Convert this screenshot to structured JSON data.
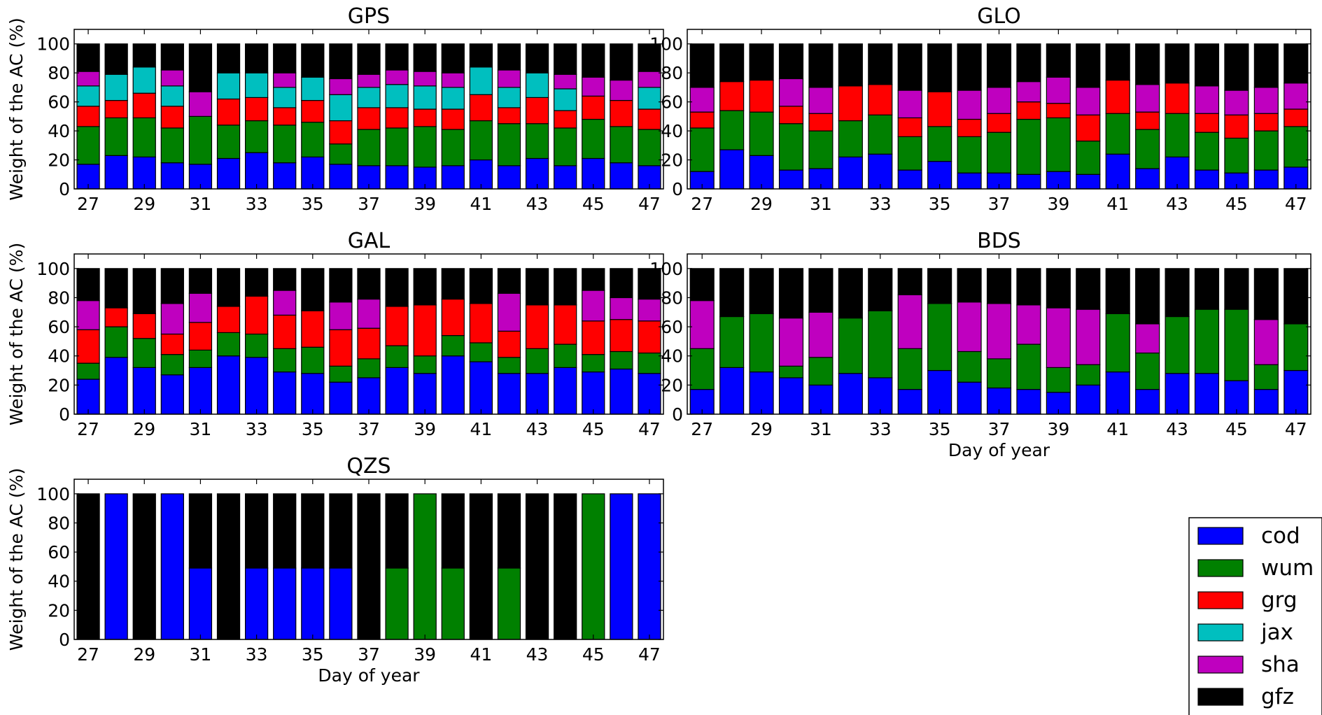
{
  "colors": {
    "cod": "#0000ff",
    "wum": "#008000",
    "grg": "#ff0000",
    "jax": "#00bfbf",
    "sha": "#bf00bf",
    "gfz": "#000000"
  },
  "legend": [
    {
      "key": "cod",
      "label": "cod"
    },
    {
      "key": "wum",
      "label": "wum"
    },
    {
      "key": "grg",
      "label": "grg"
    },
    {
      "key": "jax",
      "label": "jax"
    },
    {
      "key": "sha",
      "label": "sha"
    },
    {
      "key": "gfz",
      "label": "gfz"
    }
  ],
  "chart_data": [
    {
      "type": "bar",
      "stacked": true,
      "title": "GPS",
      "xlabel": "",
      "ylabel": "Weight of the AC (%)",
      "ylim": [
        0,
        110
      ],
      "yticks": [
        0,
        20,
        40,
        60,
        80,
        100
      ],
      "x": [
        27,
        28,
        29,
        30,
        31,
        32,
        33,
        34,
        35,
        36,
        37,
        38,
        39,
        40,
        41,
        42,
        43,
        44,
        45,
        46,
        47
      ],
      "xtick_labels": [
        "27",
        "29",
        "31",
        "33",
        "35",
        "37",
        "39",
        "41",
        "43",
        "45",
        "47"
      ],
      "series": [
        {
          "name": "cod",
          "values": [
            17,
            23,
            22,
            18,
            17,
            21,
            25,
            18,
            22,
            17,
            16,
            16,
            15,
            16,
            20,
            16,
            21,
            16,
            21,
            18,
            16
          ]
        },
        {
          "name": "wum",
          "values": [
            26,
            26,
            27,
            24,
            33,
            23,
            22,
            26,
            24,
            14,
            25,
            26,
            28,
            25,
            27,
            29,
            24,
            26,
            27,
            25,
            25
          ]
        },
        {
          "name": "grg",
          "values": [
            14,
            12,
            17,
            15,
            0,
            18,
            16,
            12,
            15,
            16,
            15,
            14,
            12,
            14,
            18,
            11,
            18,
            12,
            16,
            18,
            14
          ]
        },
        {
          "name": "jax",
          "values": [
            14,
            18,
            18,
            14,
            0,
            18,
            17,
            14,
            16,
            18,
            14,
            16,
            16,
            15,
            19,
            14,
            17,
            15,
            0,
            0,
            15
          ]
        },
        {
          "name": "sha",
          "values": [
            10,
            0,
            0,
            11,
            17,
            0,
            0,
            10,
            0,
            11,
            9,
            10,
            10,
            10,
            0,
            12,
            0,
            10,
            13,
            14,
            11
          ]
        },
        {
          "name": "gfz",
          "values": [
            19,
            21,
            16,
            18,
            33,
            20,
            20,
            20,
            23,
            24,
            21,
            18,
            19,
            20,
            16,
            18,
            20,
            21,
            23,
            25,
            19
          ]
        }
      ]
    },
    {
      "type": "bar",
      "stacked": true,
      "title": "GLO",
      "xlabel": "",
      "ylabel": "",
      "ylim": [
        0,
        110
      ],
      "yticks": [
        0,
        20,
        40,
        60,
        80,
        100
      ],
      "x": [
        27,
        28,
        29,
        30,
        31,
        32,
        33,
        34,
        35,
        36,
        37,
        38,
        39,
        40,
        41,
        42,
        43,
        44,
        45,
        46,
        47
      ],
      "xtick_labels": [
        "27",
        "29",
        "31",
        "33",
        "35",
        "37",
        "39",
        "41",
        "43",
        "45",
        "47"
      ],
      "series": [
        {
          "name": "cod",
          "values": [
            12,
            27,
            23,
            13,
            14,
            22,
            24,
            13,
            19,
            11,
            11,
            10,
            12,
            10,
            24,
            14,
            22,
            13,
            11,
            13,
            15
          ]
        },
        {
          "name": "wum",
          "values": [
            30,
            27,
            30,
            32,
            26,
            25,
            27,
            23,
            24,
            25,
            28,
            38,
            37,
            23,
            28,
            27,
            30,
            26,
            24,
            27,
            28
          ]
        },
        {
          "name": "grg",
          "values": [
            11,
            20,
            22,
            12,
            12,
            24,
            21,
            13,
            24,
            12,
            13,
            12,
            10,
            18,
            23,
            12,
            21,
            13,
            16,
            12,
            12
          ]
        },
        {
          "name": "jax",
          "values": [
            0,
            0,
            0,
            0,
            0,
            0,
            0,
            0,
            0,
            0,
            0,
            0,
            0,
            0,
            0,
            0,
            0,
            0,
            0,
            0,
            0
          ]
        },
        {
          "name": "sha",
          "values": [
            17,
            0,
            0,
            19,
            18,
            0,
            0,
            19,
            0,
            20,
            18,
            14,
            18,
            19,
            0,
            19,
            0,
            19,
            17,
            18,
            18
          ]
        },
        {
          "name": "gfz",
          "values": [
            30,
            26,
            25,
            24,
            30,
            29,
            28,
            32,
            33,
            32,
            30,
            26,
            23,
            30,
            25,
            28,
            27,
            29,
            32,
            30,
            27
          ]
        }
      ]
    },
    {
      "type": "bar",
      "stacked": true,
      "title": "GAL",
      "xlabel": "",
      "ylabel": "Weight of the AC (%)",
      "ylim": [
        0,
        110
      ],
      "yticks": [
        0,
        20,
        40,
        60,
        80,
        100
      ],
      "x": [
        27,
        28,
        29,
        30,
        31,
        32,
        33,
        34,
        35,
        36,
        37,
        38,
        39,
        40,
        41,
        42,
        43,
        44,
        45,
        46,
        47
      ],
      "xtick_labels": [
        "27",
        "29",
        "31",
        "33",
        "35",
        "37",
        "39",
        "41",
        "43",
        "45",
        "47"
      ],
      "series": [
        {
          "name": "cod",
          "values": [
            24,
            39,
            32,
            27,
            32,
            40,
            39,
            29,
            28,
            22,
            25,
            32,
            28,
            40,
            36,
            28,
            28,
            32,
            29,
            31,
            28
          ]
        },
        {
          "name": "wum",
          "values": [
            11,
            21,
            20,
            14,
            12,
            16,
            16,
            16,
            18,
            11,
            13,
            15,
            12,
            14,
            13,
            11,
            17,
            16,
            12,
            12,
            14
          ]
        },
        {
          "name": "grg",
          "values": [
            23,
            13,
            17,
            14,
            19,
            18,
            26,
            23,
            25,
            25,
            21,
            27,
            35,
            25,
            27,
            18,
            30,
            27,
            23,
            22,
            22
          ]
        },
        {
          "name": "jax",
          "values": [
            0,
            0,
            0,
            0,
            0,
            0,
            0,
            0,
            0,
            0,
            0,
            0,
            0,
            0,
            0,
            0,
            0,
            0,
            0,
            0,
            0
          ]
        },
        {
          "name": "sha",
          "values": [
            20,
            0,
            0,
            21,
            20,
            0,
            0,
            17,
            0,
            19,
            20,
            0,
            0,
            0,
            0,
            26,
            0,
            0,
            21,
            15,
            15
          ]
        },
        {
          "name": "gfz",
          "values": [
            22,
            27,
            31,
            24,
            17,
            26,
            19,
            15,
            29,
            23,
            21,
            26,
            25,
            21,
            24,
            17,
            25,
            25,
            15,
            20,
            21
          ]
        }
      ]
    },
    {
      "type": "bar",
      "stacked": true,
      "title": "BDS",
      "xlabel": "Day of year",
      "ylabel": "",
      "ylim": [
        0,
        110
      ],
      "yticks": [
        0,
        20,
        40,
        60,
        80,
        100
      ],
      "x": [
        27,
        28,
        29,
        30,
        31,
        32,
        33,
        34,
        35,
        36,
        37,
        38,
        39,
        40,
        41,
        42,
        43,
        44,
        45,
        46,
        47
      ],
      "xtick_labels": [
        "27",
        "29",
        "31",
        "33",
        "35",
        "37",
        "39",
        "41",
        "43",
        "45",
        "47"
      ],
      "series": [
        {
          "name": "cod",
          "values": [
            17,
            32,
            29,
            25,
            20,
            28,
            25,
            17,
            30,
            22,
            18,
            17,
            15,
            20,
            29,
            17,
            28,
            28,
            23,
            17,
            30
          ]
        },
        {
          "name": "wum",
          "values": [
            28,
            35,
            40,
            8,
            19,
            38,
            46,
            28,
            46,
            21,
            20,
            31,
            17,
            14,
            40,
            25,
            39,
            44,
            49,
            17,
            32
          ]
        },
        {
          "name": "grg",
          "values": [
            0,
            0,
            0,
            0,
            0,
            0,
            0,
            0,
            0,
            0,
            0,
            0,
            0,
            0,
            0,
            0,
            0,
            0,
            0,
            0,
            0
          ]
        },
        {
          "name": "jax",
          "values": [
            0,
            0,
            0,
            0,
            0,
            0,
            0,
            0,
            0,
            0,
            0,
            0,
            0,
            0,
            0,
            0,
            0,
            0,
            0,
            0,
            0
          ]
        },
        {
          "name": "sha",
          "values": [
            33,
            0,
            0,
            33,
            31,
            0,
            0,
            37,
            0,
            34,
            38,
            27,
            41,
            38,
            0,
            20,
            0,
            0,
            0,
            31,
            0
          ]
        },
        {
          "name": "gfz",
          "values": [
            22,
            33,
            31,
            34,
            30,
            34,
            29,
            18,
            24,
            23,
            24,
            25,
            27,
            28,
            31,
            38,
            33,
            28,
            28,
            35,
            38
          ]
        }
      ]
    },
    {
      "type": "bar",
      "stacked": true,
      "title": "QZS",
      "xlabel": "Day of year",
      "ylabel": "Weight of the AC (%)",
      "ylim": [
        0,
        110
      ],
      "yticks": [
        0,
        20,
        40,
        60,
        80,
        100
      ],
      "x": [
        27,
        28,
        29,
        30,
        31,
        32,
        33,
        34,
        35,
        36,
        37,
        38,
        39,
        40,
        41,
        42,
        43,
        44,
        45,
        46,
        47
      ],
      "xtick_labels": [
        "27",
        "29",
        "31",
        "33",
        "35",
        "37",
        "39",
        "41",
        "43",
        "45",
        "47"
      ],
      "series": [
        {
          "name": "cod",
          "values": [
            0,
            100,
            0,
            100,
            49,
            0,
            49,
            49,
            49,
            49,
            0,
            0,
            0,
            0,
            0,
            0,
            0,
            0,
            0,
            100,
            100
          ]
        },
        {
          "name": "wum",
          "values": [
            0,
            0,
            0,
            0,
            0,
            0,
            0,
            0,
            0,
            0,
            0,
            49,
            100,
            49,
            0,
            49,
            0,
            0,
            100,
            0,
            0
          ]
        },
        {
          "name": "grg",
          "values": [
            0,
            0,
            0,
            0,
            0,
            0,
            0,
            0,
            0,
            0,
            0,
            0,
            0,
            0,
            0,
            0,
            0,
            0,
            0,
            0,
            0
          ]
        },
        {
          "name": "jax",
          "values": [
            0,
            0,
            0,
            0,
            0,
            0,
            0,
            0,
            0,
            0,
            0,
            0,
            0,
            0,
            0,
            0,
            0,
            0,
            0,
            0,
            0
          ]
        },
        {
          "name": "sha",
          "values": [
            0,
            0,
            0,
            0,
            0,
            0,
            0,
            0,
            0,
            0,
            0,
            0,
            0,
            0,
            0,
            0,
            0,
            0,
            0,
            0,
            0
          ]
        },
        {
          "name": "gfz",
          "values": [
            100,
            0,
            100,
            0,
            51,
            100,
            51,
            51,
            51,
            51,
            100,
            51,
            0,
            51,
            100,
            51,
            100,
            100,
            0,
            0,
            0
          ]
        }
      ]
    }
  ]
}
